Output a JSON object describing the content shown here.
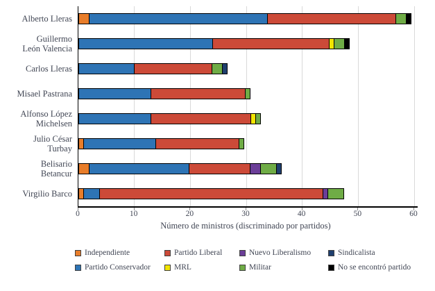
{
  "figure": {
    "background": "#FFFFFF",
    "text_color": "#414654",
    "gridline_color": "#D9D9D9",
    "axis_color": "#000000"
  },
  "chart_data": {
    "type": "bar",
    "orientation": "horizontal",
    "stacked": true,
    "title": "",
    "xlabel": "Número de ministros (discriminado por partidos)",
    "ylabel": "",
    "xlim": [
      0,
      60
    ],
    "x_ticks": [
      0,
      10,
      20,
      30,
      40,
      50,
      60
    ],
    "grid": true,
    "categories": [
      "Alberto Lleras",
      "Guillermo León Valencia",
      "Carlos Lleras",
      "Misael Pastrana",
      "Alfonso López Michelsen",
      "Julio César Turbay",
      "Belisario Betancur",
      "Virgilio Barco"
    ],
    "category_display": [
      [
        "Alberto Lleras"
      ],
      [
        "Guillermo",
        "León Valencia"
      ],
      [
        "Carlos Lleras"
      ],
      [
        "Misael Pastrana"
      ],
      [
        "Alfonso López",
        "Michelsen"
      ],
      [
        "Julio César",
        "Turbay"
      ],
      [
        "Belisario",
        "Betancur"
      ],
      [
        "Virgilio Barco"
      ]
    ],
    "series": [
      {
        "name": "Independiente",
        "color": "#E87D2A",
        "values": [
          2,
          0,
          0,
          0,
          0,
          1,
          2,
          1
        ]
      },
      {
        "name": "Partido Conservador",
        "color": "#2E74B5",
        "values": [
          32,
          24,
          10,
          13,
          13,
          13,
          18,
          3
        ]
      },
      {
        "name": "Partido Liberal",
        "color": "#CC4A38",
        "values": [
          23,
          21,
          14,
          17,
          18,
          15,
          11,
          40
        ]
      },
      {
        "name": "MRL",
        "color": "#F2E500",
        "values": [
          0,
          1,
          0,
          0,
          1,
          0,
          0,
          0
        ]
      },
      {
        "name": "Nuevo Liberalismo",
        "color": "#6B3E98",
        "values": [
          0,
          0,
          0,
          0,
          0,
          0,
          2,
          1
        ]
      },
      {
        "name": "Militar",
        "color": "#6FAC46",
        "values": [
          2,
          2,
          2,
          1,
          1,
          1,
          3,
          3
        ]
      },
      {
        "name": "Sindicalista",
        "color": "#1F3F6E",
        "values": [
          0,
          0,
          1,
          0,
          0,
          0,
          1,
          0
        ]
      },
      {
        "name": "No se encontró partido",
        "color": "#000000",
        "values": [
          1,
          1,
          0,
          0,
          0,
          0,
          0,
          0
        ]
      }
    ],
    "totals": [
      60,
      49,
      27,
      31,
      33,
      30,
      37,
      48
    ],
    "legend_position": "bottom",
    "legend_items": [
      "Independiente",
      "Partido Liberal",
      "Nuevo Liberalismo",
      "Sindicalista",
      "Partido Conservador",
      "MRL",
      "Militar",
      "No se encontró partido"
    ]
  }
}
